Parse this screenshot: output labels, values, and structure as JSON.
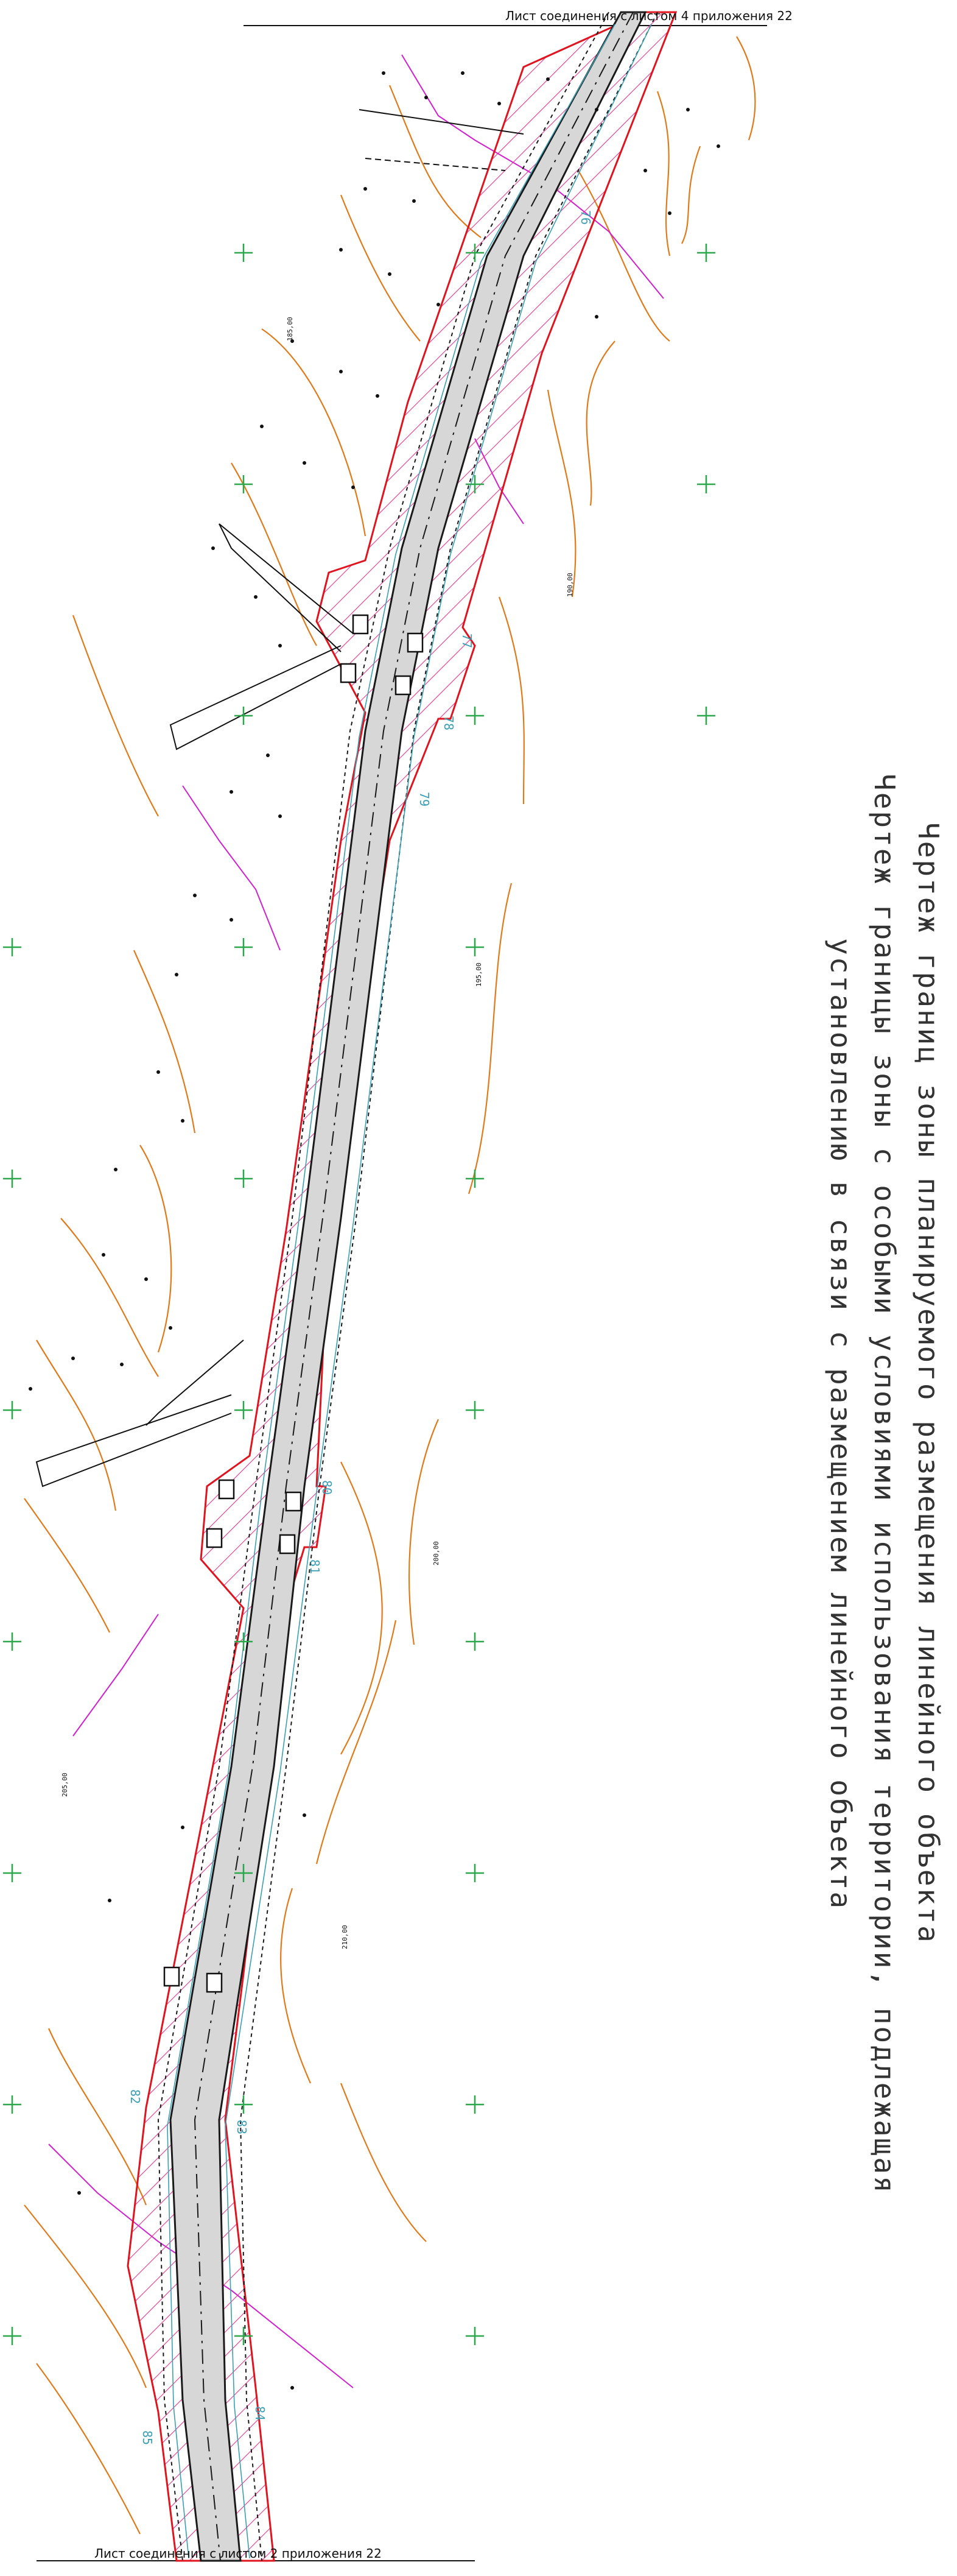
{
  "sheet": {
    "top_link": "Лист соединения с листом 4 приложения 22",
    "bottom_link": "Лист соединения с листом 2 приложения 22"
  },
  "title": {
    "line1": "Чертеж границ зоны планируемого размещения линейного объекта",
    "line2": "Чертеж границы зоны с особыми условиями использования территории, подлежащая",
    "line3": "установлению в связи с размещением линейного объекта"
  },
  "colors": {
    "zone_boundary": "#e0141e",
    "hatch": "#e8368c",
    "road_fill": "#d7d7d7",
    "road_edge": "#1a1a1a",
    "contour": "#e07a1a",
    "magenta_line": "#d020d0",
    "grid_cross": "#2aa84a",
    "picket_label": "#3a9fb5"
  },
  "pickets": [
    "76",
    "77",
    "78",
    "79",
    "80",
    "81",
    "82",
    "83",
    "84",
    "85"
  ],
  "elevation_labels": [
    "185,00",
    "190,00",
    "195,00",
    "200,00",
    "205,00",
    "210,00"
  ]
}
